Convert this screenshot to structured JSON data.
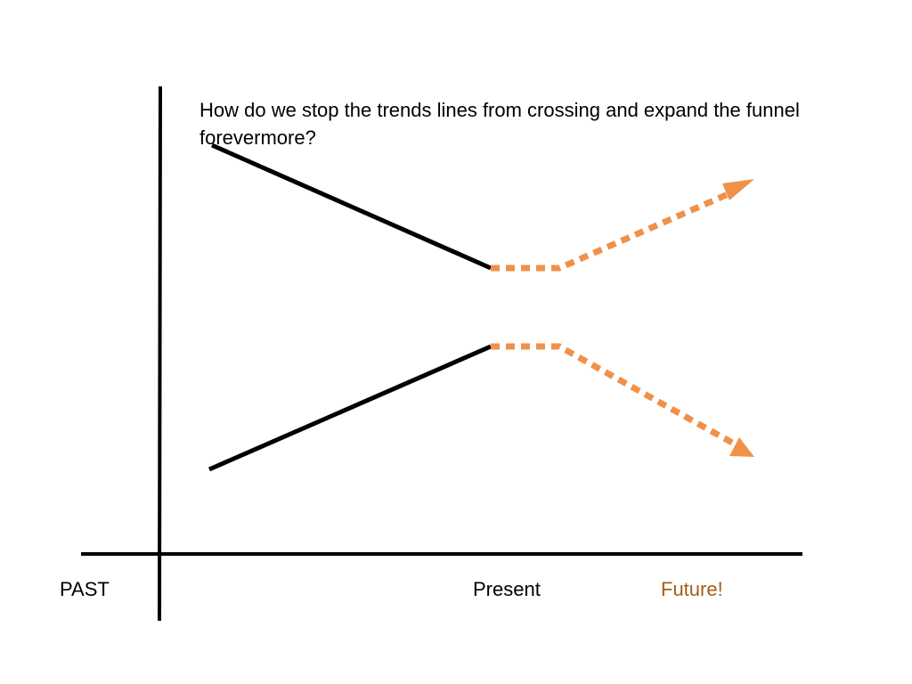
{
  "question_text": "How do we stop the trends lines from crossing and expand the funnel forevermore?",
  "axis_labels": {
    "past": "PAST",
    "present": "Present",
    "future": "Future!"
  },
  "colors": {
    "past_line": "#000000",
    "future_line": "#f0914a",
    "future_label": "#a65d1c",
    "axis": "#000000",
    "label": "#000000"
  }
}
